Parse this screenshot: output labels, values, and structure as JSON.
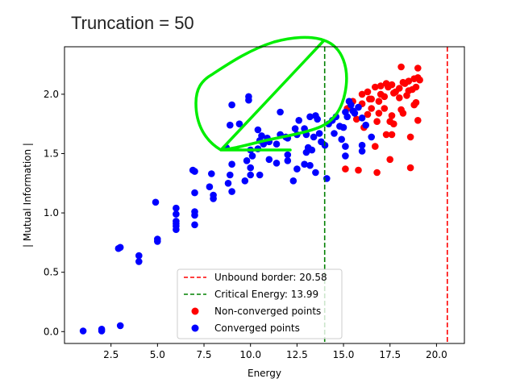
{
  "title": "Truncation = 50",
  "chart_data": {
    "type": "scatter",
    "title": "Truncation = 50",
    "xlabel": "Energy",
    "ylabel": "| Mutual Information |",
    "xlim": [
      0.0,
      21.5
    ],
    "ylim": [
      -0.1,
      2.4
    ],
    "x_ticks": [
      2.5,
      5.0,
      7.5,
      10.0,
      12.5,
      15.0,
      17.5,
      20.0
    ],
    "x_tick_labels": [
      "2.5",
      "5.0",
      "7.5",
      "10.0",
      "12.5",
      "15.0",
      "17.5",
      "20.0"
    ],
    "y_ticks": [
      0.0,
      0.5,
      1.0,
      1.5,
      2.0
    ],
    "y_tick_labels": [
      "0.0",
      "0.5",
      "1.0",
      "1.5",
      "2.0"
    ],
    "grid": false,
    "legend_position": "lower-center",
    "vlines": [
      {
        "name": "Unbound border: 20.58",
        "x": 20.58,
        "color": "#ff0000",
        "style": "dashed"
      },
      {
        "name": "Critical Energy: 13.99",
        "x": 13.99,
        "color": "#008000",
        "style": "dashed"
      }
    ],
    "series": [
      {
        "name": "Non-converged points",
        "color": "#ff0000",
        "points": [
          [
            15.1,
            1.37
          ],
          [
            15.8,
            1.36
          ],
          [
            16.8,
            1.34
          ],
          [
            17.5,
            1.45
          ],
          [
            18.6,
            1.38
          ],
          [
            16.7,
            1.56
          ],
          [
            17.6,
            1.66
          ],
          [
            18.6,
            1.64
          ],
          [
            16.1,
            1.72
          ],
          [
            16.8,
            1.77
          ],
          [
            17.3,
            1.66
          ],
          [
            17.5,
            1.77
          ],
          [
            17.7,
            1.75
          ],
          [
            18.2,
            1.84
          ],
          [
            19.0,
            1.78
          ],
          [
            16.3,
            1.83
          ],
          [
            16.9,
            1.84
          ],
          [
            17.2,
            1.88
          ],
          [
            17.6,
            1.82
          ],
          [
            18.1,
            1.87
          ],
          [
            18.8,
            1.91
          ],
          [
            15.7,
            1.79
          ],
          [
            16.0,
            1.92
          ],
          [
            16.5,
            1.88
          ],
          [
            16.9,
            1.94
          ],
          [
            17.2,
            1.98
          ],
          [
            17.7,
            2.01
          ],
          [
            18.0,
            1.97
          ],
          [
            18.5,
            2.03
          ],
          [
            18.9,
            2.06
          ],
          [
            16.0,
            2.0
          ],
          [
            16.3,
            2.02
          ],
          [
            16.7,
            2.06
          ],
          [
            17.0,
            2.07
          ],
          [
            17.3,
            2.09
          ],
          [
            17.6,
            2.08
          ],
          [
            18.0,
            2.05
          ],
          [
            18.2,
            2.1
          ],
          [
            18.5,
            2.11
          ],
          [
            18.8,
            2.13
          ],
          [
            19.1,
            2.12
          ],
          [
            15.5,
            1.94
          ],
          [
            16.4,
            1.96
          ],
          [
            17.8,
            2.02
          ],
          [
            18.3,
            2.09
          ],
          [
            18.7,
            2.04
          ],
          [
            19.0,
            2.14
          ],
          [
            18.1,
            2.23
          ],
          [
            19.0,
            2.22
          ],
          [
            15.2,
            1.88
          ],
          [
            17.0,
            2.0
          ],
          [
            18.4,
            1.99
          ],
          [
            16.5,
            1.96
          ],
          [
            17.4,
            2.06
          ],
          [
            18.9,
            1.93
          ]
        ]
      },
      {
        "name": "Converged points",
        "color": "#0000ff",
        "points": [
          [
            1.0,
            0.005
          ],
          [
            2.0,
            0.005
          ],
          [
            2.0,
            0.02
          ],
          [
            3.0,
            0.05
          ],
          [
            2.9,
            0.7
          ],
          [
            3.0,
            0.71
          ],
          [
            4.0,
            0.59
          ],
          [
            4.0,
            0.64
          ],
          [
            5.0,
            0.76
          ],
          [
            5.0,
            0.78
          ],
          [
            4.9,
            1.09
          ],
          [
            6.0,
            0.86
          ],
          [
            6.0,
            0.89
          ],
          [
            6.0,
            0.91
          ],
          [
            6.0,
            0.93
          ],
          [
            6.0,
            0.99
          ],
          [
            6.0,
            1.04
          ],
          [
            7.0,
            0.9
          ],
          [
            7.0,
            0.98
          ],
          [
            7.0,
            1.01
          ],
          [
            7.0,
            1.17
          ],
          [
            6.9,
            1.36
          ],
          [
            7.0,
            1.35
          ],
          [
            7.8,
            1.22
          ],
          [
            8.0,
            1.15
          ],
          [
            7.9,
            1.33
          ],
          [
            8.0,
            1.12
          ],
          [
            8.8,
            1.25
          ],
          [
            9.0,
            1.18
          ],
          [
            8.9,
            1.32
          ],
          [
            9.0,
            1.41
          ],
          [
            8.7,
            1.55
          ],
          [
            9.7,
            1.27
          ],
          [
            10.0,
            1.32
          ],
          [
            9.8,
            1.44
          ],
          [
            10.0,
            1.38
          ],
          [
            10.5,
            1.32
          ],
          [
            10.0,
            1.53
          ],
          [
            10.1,
            1.48
          ],
          [
            11.0,
            1.45
          ],
          [
            11.4,
            1.42
          ],
          [
            12.0,
            1.44
          ],
          [
            8.9,
            1.74
          ],
          [
            9.4,
            1.75
          ],
          [
            9.0,
            1.91
          ],
          [
            9.9,
            1.95
          ],
          [
            9.9,
            1.98
          ],
          [
            10.4,
            1.7
          ],
          [
            10.5,
            1.61
          ],
          [
            10.6,
            1.65
          ],
          [
            10.9,
            1.63
          ],
          [
            11.0,
            1.6
          ],
          [
            10.4,
            1.54
          ],
          [
            10.7,
            1.58
          ],
          [
            11.4,
            1.58
          ],
          [
            11.6,
            1.66
          ],
          [
            11.9,
            1.64
          ],
          [
            11.6,
            1.85
          ],
          [
            12.0,
            1.63
          ],
          [
            12.5,
            1.66
          ],
          [
            12.4,
            1.71
          ],
          [
            12.6,
            1.78
          ],
          [
            12.9,
            1.71
          ],
          [
            13.0,
            1.66
          ],
          [
            13.2,
            1.81
          ],
          [
            13.5,
            1.82
          ],
          [
            13.0,
            1.51
          ],
          [
            13.1,
            1.55
          ],
          [
            12.5,
            1.37
          ],
          [
            12.3,
            1.27
          ],
          [
            12.0,
            1.49
          ],
          [
            12.9,
            1.41
          ],
          [
            13.4,
            1.64
          ],
          [
            13.6,
            1.79
          ],
          [
            13.7,
            1.67
          ],
          [
            13.8,
            1.6
          ],
          [
            13.5,
            1.34
          ],
          [
            13.3,
            1.53
          ],
          [
            13.2,
            1.4
          ],
          [
            14.0,
            1.57
          ],
          [
            14.2,
            1.75
          ],
          [
            14.1,
            1.29
          ],
          [
            14.4,
            1.78
          ],
          [
            14.6,
            1.81
          ],
          [
            14.8,
            1.73
          ],
          [
            14.5,
            1.67
          ],
          [
            14.9,
            1.62
          ],
          [
            15.1,
            1.56
          ],
          [
            15.1,
            1.48
          ],
          [
            15.0,
            1.72
          ],
          [
            15.2,
            1.81
          ],
          [
            15.4,
            1.91
          ],
          [
            15.6,
            1.84
          ],
          [
            15.3,
            1.94
          ],
          [
            15.5,
            1.86
          ],
          [
            15.8,
            1.89
          ],
          [
            16.0,
            1.8
          ],
          [
            16.2,
            1.74
          ],
          [
            16.0,
            1.57
          ],
          [
            16.0,
            1.52
          ],
          [
            16.5,
            1.64
          ],
          [
            15.1,
            1.85
          ]
        ]
      }
    ],
    "annotations": [
      {
        "type": "freehand-loop",
        "color": "#00ee00"
      }
    ]
  },
  "legend": [
    {
      "label": "Unbound border: 20.58",
      "kind": "dashed-line",
      "color": "#ff0000"
    },
    {
      "label": "Critical Energy: 13.99",
      "kind": "dashed-line",
      "color": "#008000"
    },
    {
      "label": "Non-converged points",
      "kind": "marker",
      "color": "#ff0000"
    },
    {
      "label": "Converged points",
      "kind": "marker",
      "color": "#0000ff"
    }
  ]
}
